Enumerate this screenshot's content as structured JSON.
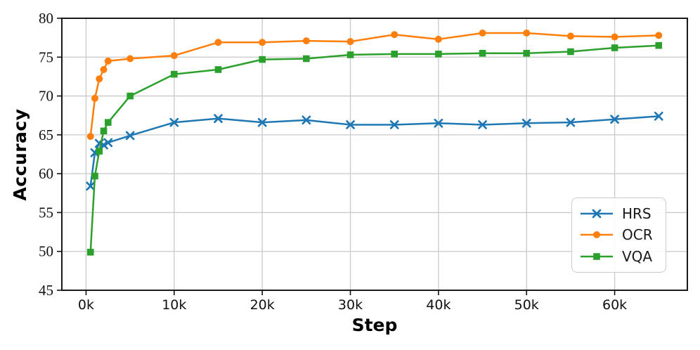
{
  "chart_data": {
    "type": "line",
    "title": "",
    "xlabel": "Step",
    "ylabel": "Accuracy",
    "grid": true,
    "xlim_k": [
      -2.75,
      68.25
    ],
    "ylim": [
      45,
      80
    ],
    "x_k": [
      0.5,
      1,
      1.5,
      2,
      2.5,
      5,
      10,
      15,
      20,
      25,
      30,
      35,
      40,
      45,
      50,
      55,
      60,
      65
    ],
    "series": [
      {
        "name": "HRS",
        "color": "#1f77b4",
        "marker": "x",
        "values": [
          58.4,
          62.7,
          63.9,
          63.7,
          64.0,
          64.9,
          66.6,
          67.1,
          66.6,
          66.9,
          66.3,
          66.3,
          66.5,
          66.3,
          66.5,
          66.6,
          67.0,
          67.4
        ]
      },
      {
        "name": "OCR",
        "color": "#ff7f0e",
        "marker": "circle",
        "values": [
          64.8,
          69.7,
          72.2,
          73.4,
          74.5,
          74.8,
          75.2,
          76.9,
          76.9,
          77.1,
          77.0,
          77.9,
          77.3,
          78.1,
          78.1,
          77.7,
          77.6,
          77.8
        ]
      },
      {
        "name": "VQA",
        "color": "#2ca02c",
        "marker": "square",
        "values": [
          49.9,
          59.7,
          62.9,
          65.5,
          66.6,
          70.0,
          72.8,
          73.4,
          74.7,
          74.8,
          75.3,
          75.4,
          75.4,
          75.5,
          75.5,
          75.7,
          76.2,
          76.5
        ]
      }
    ],
    "x_ticks": [
      {
        "v": 0,
        "label": "0k"
      },
      {
        "v": 10,
        "label": "10k"
      },
      {
        "v": 20,
        "label": "20k"
      },
      {
        "v": 30,
        "label": "30k"
      },
      {
        "v": 40,
        "label": "40k"
      },
      {
        "v": 50,
        "label": "50k"
      },
      {
        "v": 60,
        "label": "60k"
      }
    ],
    "y_ticks": [
      {
        "v": 45,
        "label": "45"
      },
      {
        "v": 50,
        "label": "50"
      },
      {
        "v": 55,
        "label": "55"
      },
      {
        "v": 60,
        "label": "60"
      },
      {
        "v": 65,
        "label": "65"
      },
      {
        "v": 70,
        "label": "70"
      },
      {
        "v": 75,
        "label": "75"
      },
      {
        "v": 80,
        "label": "80"
      }
    ],
    "legend": {
      "position": "lower right",
      "entries": [
        "HRS",
        "OCR",
        "VQA"
      ]
    },
    "colors": {
      "grid": "#c9c9c9",
      "frame": "#1a1a1a",
      "background": "#ffffff",
      "legend_border": "#cccccc"
    }
  }
}
